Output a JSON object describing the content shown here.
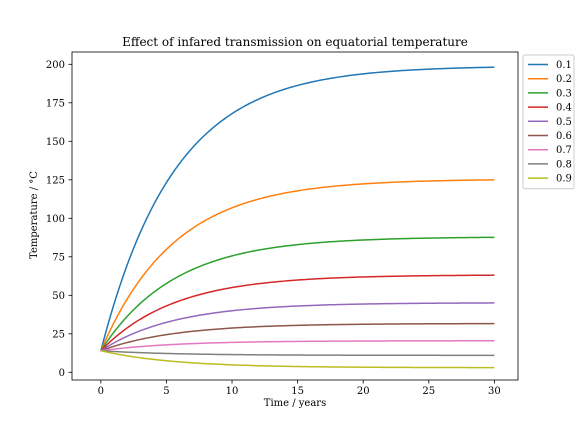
{
  "chart_data": {
    "type": "line",
    "title": "Effect of infared transmission on equatorial temperature",
    "xlabel": "Time / years",
    "ylabel": "Temperature / °C",
    "xlim": [
      -2.2,
      31.8
    ],
    "ylim": [
      -5,
      208
    ],
    "xticks": [
      0,
      5,
      10,
      15,
      20,
      25,
      30
    ],
    "yticks": [
      0,
      25,
      50,
      75,
      100,
      125,
      150,
      175,
      200
    ],
    "grid": false,
    "legend_position": "outside-top-right",
    "model": {
      "x_start": 0,
      "x_end": 30,
      "initial_value": 14,
      "time_constant_years": 5.6
    },
    "series": [
      {
        "name": "0.1",
        "color": "#1f77b4",
        "final_value": 199
      },
      {
        "name": "0.2",
        "color": "#ff7f0e",
        "final_value": 125.5
      },
      {
        "name": "0.3",
        "color": "#2ca02c",
        "final_value": 88
      },
      {
        "name": "0.4",
        "color": "#d62728",
        "final_value": 63.3
      },
      {
        "name": "0.5",
        "color": "#9467bd",
        "final_value": 45.2
      },
      {
        "name": "0.6",
        "color": "#8c564b",
        "final_value": 31.7
      },
      {
        "name": "0.7",
        "color": "#e377c2",
        "final_value": 20.5
      },
      {
        "name": "0.8",
        "color": "#7f7f7f",
        "final_value": 11
      },
      {
        "name": "0.9",
        "color": "#bcbd22",
        "final_value": 3
      }
    ]
  }
}
